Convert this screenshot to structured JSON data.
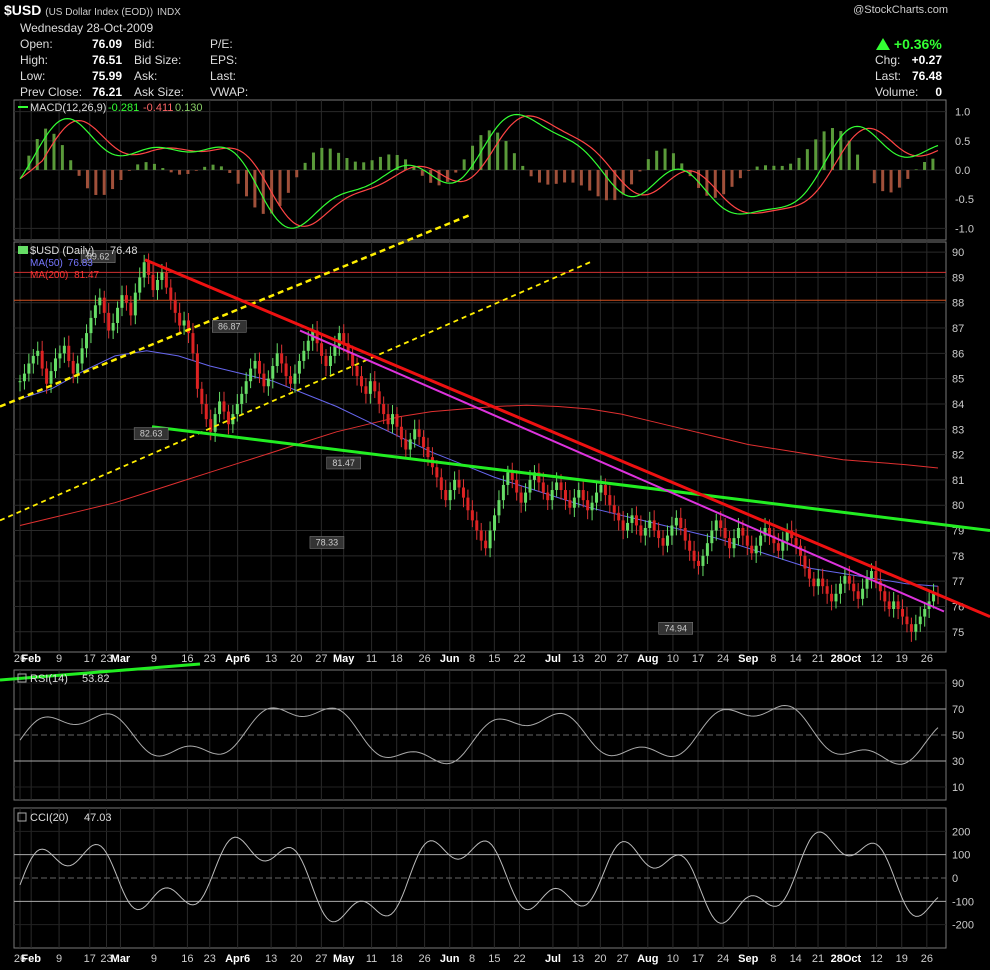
{
  "header": {
    "symbol": "$USD",
    "name": "(US Dollar Index (EOD))",
    "exchange": "INDX",
    "brand": "@StockCharts.com",
    "date": "Wednesday 28-Oct-2009",
    "rows": [
      {
        "l": "Open:",
        "v": "76.09",
        "l2": "Bid:",
        "l3": "P/E:"
      },
      {
        "l": "High:",
        "v": "76.51",
        "l2": "Bid Size:",
        "l3": "EPS:"
      },
      {
        "l": "Low:",
        "v": "75.99",
        "l2": "Ask:",
        "l3": "Last:"
      },
      {
        "l": "Prev Close:",
        "v": "76.21",
        "l2": "Ask Size:",
        "l3": "VWAP:"
      }
    ],
    "pct": "+0.36%",
    "chg_label": "Chg:",
    "chg": "+0.27",
    "last_label": "Last:",
    "last": "76.48",
    "vol_label": "Volume:",
    "vol": "0"
  },
  "chart_data": [
    {
      "type": "bar",
      "panel": "macd",
      "title": "MACD(12,26,9)",
      "values_text": [
        "-0.281",
        "-0.411",
        "0.130"
      ],
      "ylim": [
        -1.2,
        1.2
      ],
      "ticks": [
        "1.0",
        "0.5",
        "0.0",
        "-0.5",
        "-1.0"
      ],
      "colors": {
        "macd": "#33ff33",
        "signal": "#ff4444",
        "hist": "#66aa44"
      }
    },
    {
      "type": "line",
      "panel": "price",
      "title": "$USD (Daily)",
      "last": "76.48",
      "legend": [
        {
          "name": "MA(50)",
          "value": "76.83",
          "color": "#7777ff"
        },
        {
          "name": "MA(200)",
          "value": "81.47",
          "color": "#ff3333"
        }
      ],
      "ylim": [
        74.2,
        90.4
      ],
      "ticks": [
        "90",
        "89",
        "88",
        "87",
        "86",
        "85",
        "84",
        "83",
        "82",
        "81",
        "80",
        "79",
        "78",
        "77",
        "76",
        "75"
      ],
      "annotations": [
        {
          "text": "89.62",
          "date_index": 28,
          "value": 89.62
        },
        {
          "text": "86.87",
          "date_index": 75,
          "value": 86.87
        },
        {
          "text": "82.63",
          "date_index": 47,
          "value": 82.63
        },
        {
          "text": "81.47",
          "date_index": 116,
          "value": 81.47
        },
        {
          "text": "78.33",
          "date_index": 110,
          "value": 78.33
        },
        {
          "text": "74.94",
          "date_index": 235,
          "value": 74.94
        }
      ],
      "close_approx": [
        84.9,
        85.2,
        85.6,
        85.9,
        86.1,
        85.4,
        84.8,
        85.3,
        85.8,
        86.0,
        86.3,
        85.7,
        85.2,
        85.6,
        86.2,
        86.8,
        87.4,
        87.9,
        88.2,
        87.6,
        86.9,
        87.2,
        87.8,
        88.3,
        88.0,
        87.5,
        88.4,
        89.0,
        89.6,
        89.1,
        88.5,
        88.9,
        89.2,
        88.6,
        88.1,
        87.6,
        87.1,
        87.3,
        86.8,
        86.0,
        84.6,
        84.0,
        83.4,
        82.9,
        83.6,
        84.1,
        83.7,
        83.2,
        83.6,
        84.0,
        84.4,
        84.9,
        85.4,
        85.7,
        85.2,
        84.7,
        85.0,
        85.5,
        86.0,
        85.6,
        85.1,
        84.8,
        85.2,
        85.7,
        86.1,
        86.5,
        86.9,
        86.4,
        85.9,
        85.5,
        85.9,
        86.3,
        86.8,
        86.4,
        86.0,
        85.5,
        85.1,
        84.7,
        84.4,
        84.9,
        84.5,
        84.0,
        83.6,
        83.2,
        83.6,
        83.1,
        82.6,
        82.2,
        82.6,
        83.0,
        82.7,
        82.3,
        81.9,
        81.5,
        81.1,
        80.6,
        80.2,
        80.6,
        81.0,
        80.7,
        80.3,
        79.8,
        79.4,
        79.0,
        78.6,
        78.3,
        79.0,
        79.6,
        80.2,
        80.8,
        81.3,
        81.0,
        80.5,
        80.1,
        80.5,
        81.0,
        81.3,
        80.9,
        80.5,
        80.2,
        80.6,
        80.9,
        80.6,
        80.2,
        79.9,
        80.3,
        80.6,
        80.2,
        79.8,
        80.1,
        80.5,
        80.8,
        80.4,
        80.0,
        79.7,
        79.4,
        79.0,
        79.3,
        79.6,
        79.2,
        78.8,
        79.1,
        79.4,
        79.0,
        78.7,
        78.4,
        78.8,
        79.2,
        79.5,
        79.1,
        78.6,
        78.2,
        77.8,
        77.6,
        78.0,
        78.5,
        79.0,
        79.4,
        79.1,
        78.7,
        78.3,
        78.7,
        79.1,
        78.8,
        78.4,
        78.1,
        78.4,
        78.8,
        79.1,
        78.8,
        78.5,
        78.2,
        78.6,
        79.0,
        78.7,
        78.4,
        78.0,
        77.5,
        77.1,
        76.8,
        77.1,
        76.8,
        76.5,
        76.2,
        76.5,
        76.9,
        77.2,
        76.9,
        76.6,
        76.3,
        76.7,
        77.1,
        77.4,
        77.0,
        76.6,
        76.2,
        75.9,
        76.2,
        75.9,
        75.6,
        75.3,
        75.0,
        75.3,
        75.6,
        75.9,
        76.2,
        76.5,
        76.48
      ],
      "ma50_approx": [
        84.2,
        84.6,
        85.3,
        85.9,
        86.1,
        85.9,
        85.5,
        85.2,
        84.9,
        84.4,
        83.9,
        83.3,
        82.7,
        82.1,
        81.6,
        81.1,
        80.7,
        80.3,
        79.9,
        79.6,
        79.3,
        79.0,
        78.7,
        78.3,
        77.9,
        77.5,
        77.3,
        77.1,
        76.9,
        76.8
      ],
      "ma200_approx": [
        79.2,
        79.5,
        79.8,
        80.1,
        80.5,
        80.9,
        81.3,
        81.7,
        82.1,
        82.5,
        82.9,
        83.2,
        83.5,
        83.7,
        83.8,
        83.9,
        83.95,
        83.9,
        83.8,
        83.6,
        83.3,
        83.0,
        82.7,
        82.4,
        82.2,
        82.0,
        81.8,
        81.7,
        81.6,
        81.47
      ]
    },
    {
      "type": "line",
      "panel": "rsi",
      "title": "RSI(14)",
      "value_text": "53.82",
      "ylim": [
        0,
        100
      ],
      "ticks": [
        "90",
        "70",
        "50",
        "30",
        "10"
      ]
    },
    {
      "type": "line",
      "panel": "cci",
      "title": "CCI(20)",
      "value_text": "47.03",
      "ylim": [
        -300,
        300
      ],
      "ticks": [
        "200",
        "100",
        "0",
        "-100",
        "-200"
      ]
    }
  ],
  "xaxis": {
    "ticks": [
      {
        "t": "26",
        "i": 0
      },
      {
        "t": "Feb",
        "i": 4,
        "m": true
      },
      {
        "t": "9",
        "i": 14
      },
      {
        "t": "17",
        "i": 25
      },
      {
        "t": "23",
        "i": 31
      },
      {
        "t": "Mar",
        "i": 36,
        "m": true
      },
      {
        "t": "9",
        "i": 48
      },
      {
        "t": "16",
        "i": 60
      },
      {
        "t": "23",
        "i": 68
      },
      {
        "t": "Apr6",
        "i": 78,
        "m": true
      },
      {
        "t": "13",
        "i": 90
      },
      {
        "t": "20",
        "i": 99
      },
      {
        "t": "27",
        "i": 108
      },
      {
        "t": "May",
        "i": 116,
        "m": true
      },
      {
        "t": "11",
        "i": 126
      },
      {
        "t": "18",
        "i": 135
      },
      {
        "t": "26",
        "i": 145
      },
      {
        "t": "Jun",
        "i": 154,
        "m": true
      },
      {
        "t": "8",
        "i": 162
      },
      {
        "t": "15",
        "i": 170
      },
      {
        "t": "22",
        "i": 179
      },
      {
        "t": "Jul",
        "i": 191,
        "m": true
      },
      {
        "t": "13",
        "i": 200
      },
      {
        "t": "20",
        "i": 208
      },
      {
        "t": "27",
        "i": 216
      },
      {
        "t": "Aug",
        "i": 225,
        "m": true
      },
      {
        "t": "10",
        "i": 234
      },
      {
        "t": "17",
        "i": 243
      },
      {
        "t": "24",
        "i": 252
      },
      {
        "t": "Sep",
        "i": 261,
        "m": true
      },
      {
        "t": "8",
        "i": 270
      },
      {
        "t": "14",
        "i": 278
      },
      {
        "t": "21",
        "i": 286
      },
      {
        "t": "28Oct",
        "i": 296,
        "m": true
      },
      {
        "t": "12",
        "i": 307
      },
      {
        "t": "19",
        "i": 316
      },
      {
        "t": "26",
        "i": 325
      }
    ]
  }
}
